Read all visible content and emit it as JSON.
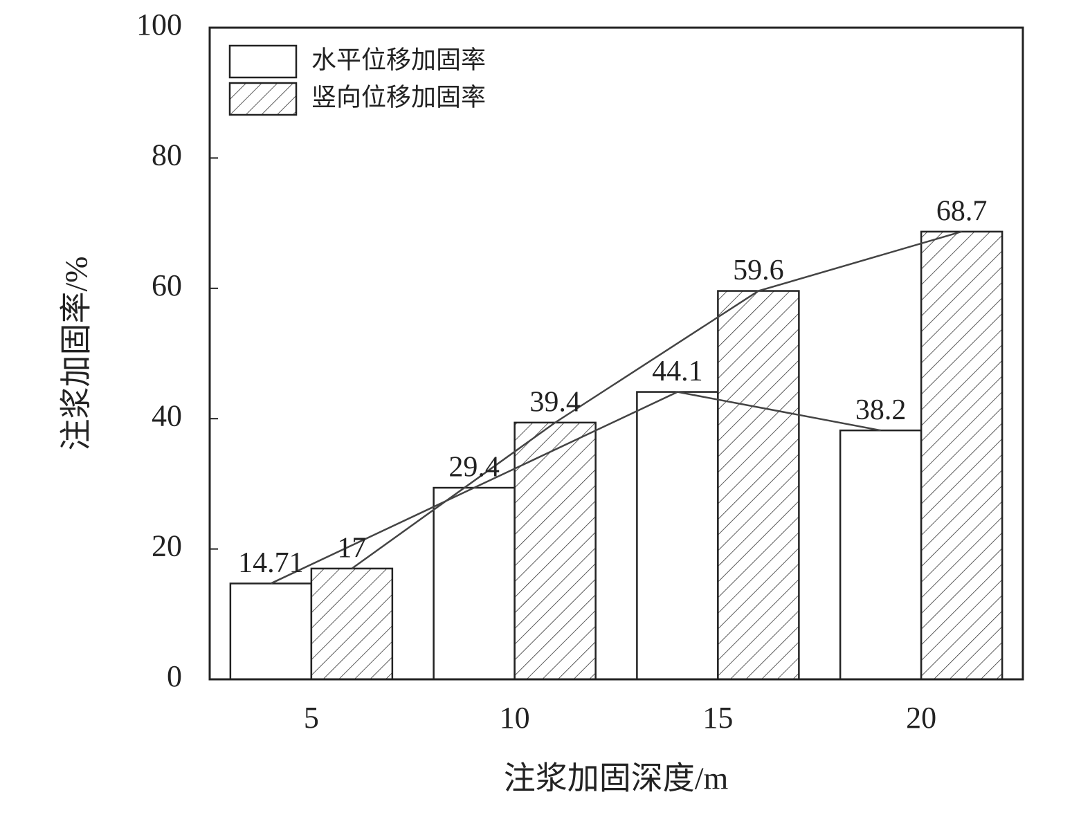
{
  "chart_data": {
    "type": "bar",
    "x_label": "注浆加固深度/m",
    "y_label": "注浆加固率/%",
    "categories": [
      5,
      10,
      15,
      20
    ],
    "series": [
      {
        "name": "水平位移加固率",
        "color": "#ffffff",
        "hatch": false,
        "line": true,
        "values": [
          14.71,
          29.4,
          44.1,
          38.2
        ]
      },
      {
        "name": "竖向位移加固率",
        "color": "#ffffff",
        "hatch": true,
        "line": true,
        "values": [
          17,
          39.4,
          59.6,
          68.7
        ]
      }
    ],
    "ylim": [
      0,
      100
    ],
    "yticks": [
      0,
      20,
      40,
      60,
      80,
      100
    ],
    "grid": false,
    "legend": "upper left",
    "line_color": "#444444"
  }
}
